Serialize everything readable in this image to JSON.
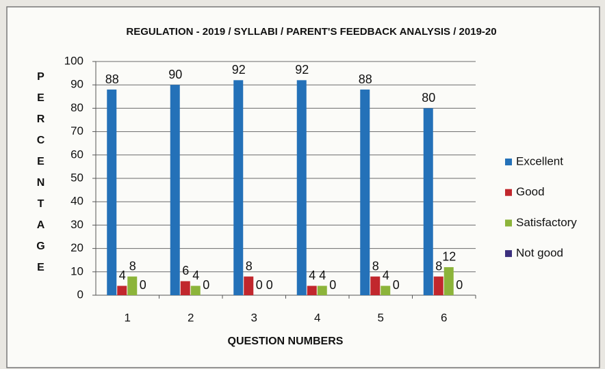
{
  "chart_data": {
    "type": "bar",
    "title": "REGULATION - 2019 / SYLLABI / PARENT'S FEEDBACK ANALYSIS / 2019-20",
    "x_label": "QUESTION NUMBERS",
    "y_label": "PERCENTAGE",
    "categories": [
      "1",
      "2",
      "3",
      "4",
      "5",
      "6"
    ],
    "series": [
      {
        "name": "Excellent",
        "color": "#2471b8",
        "values": [
          88,
          90,
          92,
          92,
          88,
          80
        ]
      },
      {
        "name": "Good",
        "color": "#c1272d",
        "values": [
          4,
          6,
          8,
          4,
          8,
          8
        ]
      },
      {
        "name": "Satisfactory",
        "color": "#8cb43a",
        "values": [
          8,
          4,
          0,
          4,
          4,
          12
        ]
      },
      {
        "name": "Not good",
        "color": "#3b2f7d",
        "values": [
          0,
          0,
          0,
          0,
          0,
          0
        ]
      }
    ],
    "ylim": [
      0,
      100
    ],
    "yticks": [
      0,
      10,
      20,
      30,
      40,
      50,
      60,
      70,
      80,
      90,
      100
    ],
    "grid": true,
    "legend": "right"
  }
}
